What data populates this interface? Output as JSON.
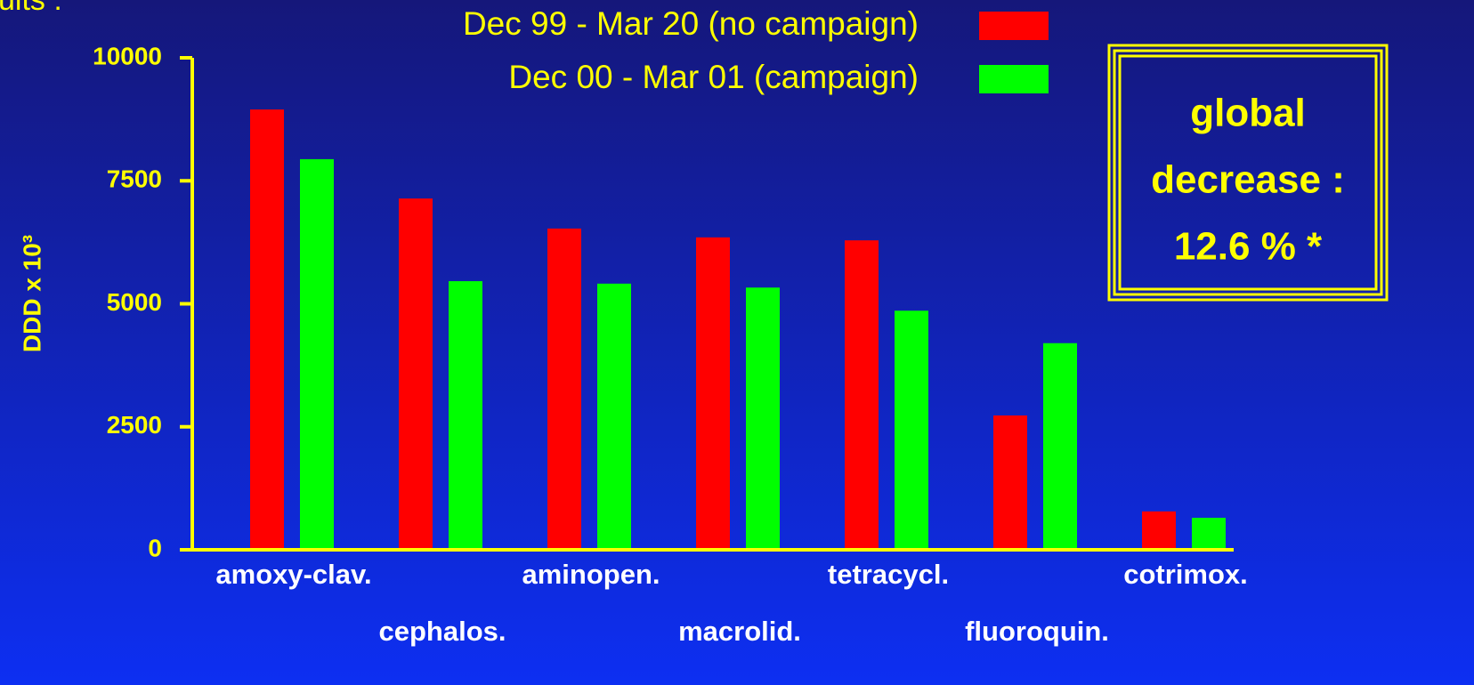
{
  "chart_data": {
    "type": "bar",
    "heading": "ults :",
    "y_label": "DDD x 10³",
    "categories": [
      "amoxy-clav.",
      "cephalos.",
      "aminopen.",
      "macrolid.",
      "tetracycl.",
      "fluoroquin.",
      "cotrimox."
    ],
    "series": [
      {
        "name": "Dec 99 - Mar 20 (no campaign)",
        "color": "#ff0000",
        "values": [
          8950,
          7140,
          6530,
          6350,
          6290,
          2730,
          780
        ]
      },
      {
        "name": "Dec 00 - Mar 01 (campaign)",
        "color": "#00ff00",
        "values": [
          7940,
          5460,
          5410,
          5330,
          4860,
          4200,
          650
        ]
      }
    ],
    "ylim": [
      0,
      10000
    ],
    "yticks": [
      0,
      2500,
      5000,
      7500,
      10000
    ],
    "axis_color": "#ffff00",
    "annotation": [
      "global",
      "decrease :",
      "12.6 % *"
    ]
  }
}
